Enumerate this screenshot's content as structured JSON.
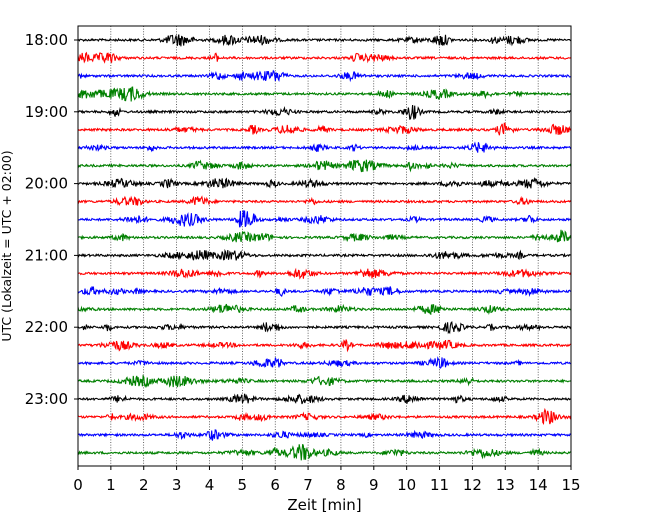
{
  "chart_data": {
    "type": "line",
    "title": "",
    "xlabel": "Zeit  [min]",
    "ylabel": "UTC (Lokalzeit = UTC + 02:00)",
    "xlim": [
      0,
      15
    ],
    "x_ticks": [
      "0",
      "1",
      "2",
      "3",
      "4",
      "5",
      "6",
      "7",
      "8",
      "9",
      "10",
      "11",
      "12",
      "13",
      "14",
      "15"
    ],
    "y_ticks": [
      "18:00",
      "19:00",
      "20:00",
      "21:00",
      "22:00",
      "23:00"
    ],
    "grid": "vertical dotted",
    "trace_colors": [
      "#000000",
      "#ff0000",
      "#0000ff",
      "#008000"
    ],
    "traces": [
      {
        "start": "18:00",
        "color": "#000000"
      },
      {
        "start": "18:15",
        "color": "#ff0000"
      },
      {
        "start": "18:30",
        "color": "#0000ff"
      },
      {
        "start": "18:45",
        "color": "#008000"
      },
      {
        "start": "19:00",
        "color": "#000000"
      },
      {
        "start": "19:15",
        "color": "#ff0000"
      },
      {
        "start": "19:30",
        "color": "#0000ff"
      },
      {
        "start": "19:45",
        "color": "#008000"
      },
      {
        "start": "20:00",
        "color": "#000000"
      },
      {
        "start": "20:15",
        "color": "#ff0000"
      },
      {
        "start": "20:30",
        "color": "#0000ff"
      },
      {
        "start": "20:45",
        "color": "#008000"
      },
      {
        "start": "21:00",
        "color": "#000000"
      },
      {
        "start": "21:15",
        "color": "#ff0000"
      },
      {
        "start": "21:30",
        "color": "#0000ff"
      },
      {
        "start": "21:45",
        "color": "#008000"
      },
      {
        "start": "22:00",
        "color": "#000000"
      },
      {
        "start": "22:15",
        "color": "#ff0000"
      },
      {
        "start": "22:30",
        "color": "#0000ff"
      },
      {
        "start": "22:45",
        "color": "#008000"
      },
      {
        "start": "23:00",
        "color": "#000000"
      },
      {
        "start": "23:15",
        "color": "#ff0000"
      },
      {
        "start": "23:30",
        "color": "#0000ff"
      },
      {
        "start": "23:45",
        "color": "#008000"
      }
    ]
  }
}
